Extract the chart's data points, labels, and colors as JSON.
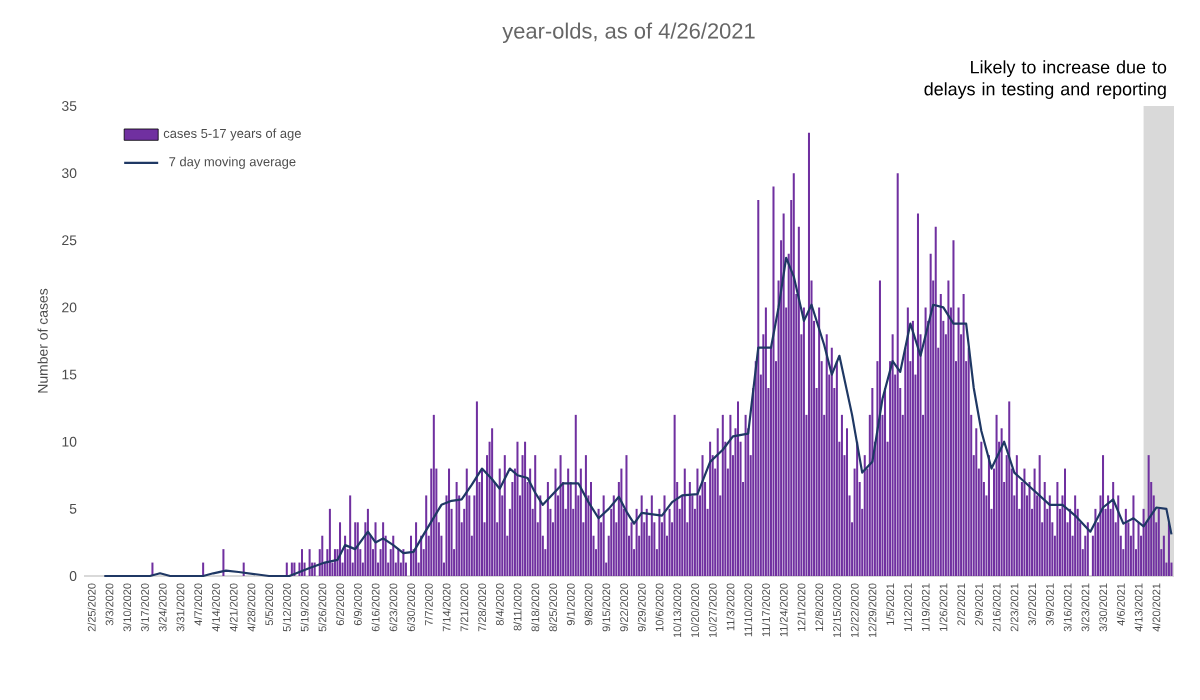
{
  "chart_data": {
    "type": "bar",
    "title": "year-olds, as of 4/26/2021",
    "ylabel": "Number of cases",
    "xlim": [
      "2020-02-22",
      "2021-04-27"
    ],
    "ylim": [
      0,
      35
    ],
    "yticks": [
      0,
      5,
      10,
      15,
      20,
      25,
      30,
      35
    ],
    "xticks": [
      {
        "value": "2020-02-25",
        "label": "2/25/2020"
      },
      {
        "value": "2020-03-03",
        "label": "3/3/2020"
      },
      {
        "value": "2020-03-10",
        "label": "3/10/2020"
      },
      {
        "value": "2020-03-17",
        "label": "3/17/2020"
      },
      {
        "value": "2020-03-24",
        "label": "3/24/2020"
      },
      {
        "value": "2020-03-31",
        "label": "3/31/2020"
      },
      {
        "value": "2020-04-07",
        "label": "4/7/2020"
      },
      {
        "value": "2020-04-14",
        "label": "4/14/2020"
      },
      {
        "value": "2020-04-21",
        "label": "4/21/2020"
      },
      {
        "value": "2020-04-28",
        "label": "4/28/2020"
      },
      {
        "value": "2020-05-05",
        "label": "5/5/2020"
      },
      {
        "value": "2020-05-12",
        "label": "5/12/2020"
      },
      {
        "value": "2020-05-19",
        "label": "5/19/2020"
      },
      {
        "value": "2020-05-26",
        "label": "5/26/2020"
      },
      {
        "value": "2020-06-02",
        "label": "6/2/2020"
      },
      {
        "value": "2020-06-09",
        "label": "6/9/2020"
      },
      {
        "value": "2020-06-16",
        "label": "6/16/2020"
      },
      {
        "value": "2020-06-23",
        "label": "6/23/2020"
      },
      {
        "value": "2020-06-30",
        "label": "6/30/2020"
      },
      {
        "value": "2020-07-07",
        "label": "7/7/2020"
      },
      {
        "value": "2020-07-14",
        "label": "7/14/2020"
      },
      {
        "value": "2020-07-21",
        "label": "7/21/2020"
      },
      {
        "value": "2020-07-28",
        "label": "7/28/2020"
      },
      {
        "value": "2020-08-04",
        "label": "8/4/2020"
      },
      {
        "value": "2020-08-11",
        "label": "8/11/2020"
      },
      {
        "value": "2020-08-18",
        "label": "8/18/2020"
      },
      {
        "value": "2020-08-25",
        "label": "8/25/2020"
      },
      {
        "value": "2020-09-01",
        "label": "9/1/2020"
      },
      {
        "value": "2020-09-08",
        "label": "9/8/2020"
      },
      {
        "value": "2020-09-15",
        "label": "9/15/2020"
      },
      {
        "value": "2020-09-22",
        "label": "9/22/2020"
      },
      {
        "value": "2020-09-29",
        "label": "9/29/2020"
      },
      {
        "value": "2020-10-06",
        "label": "10/6/2020"
      },
      {
        "value": "2020-10-13",
        "label": "10/13/2020"
      },
      {
        "value": "2020-10-20",
        "label": "10/20/2020"
      },
      {
        "value": "2020-10-27",
        "label": "10/27/2020"
      },
      {
        "value": "2020-11-03",
        "label": "11/3/2020"
      },
      {
        "value": "2020-11-10",
        "label": "11/10/2020"
      },
      {
        "value": "2020-11-17",
        "label": "11/17/2020"
      },
      {
        "value": "2020-11-24",
        "label": "11/24/2020"
      },
      {
        "value": "2020-12-01",
        "label": "12/1/2020"
      },
      {
        "value": "2020-12-08",
        "label": "12/8/2020"
      },
      {
        "value": "2020-12-15",
        "label": "12/15/2020"
      },
      {
        "value": "2020-12-22",
        "label": "12/22/2020"
      },
      {
        "value": "2020-12-29",
        "label": "12/29/2020"
      },
      {
        "value": "2021-01-05",
        "label": "1/5/2021"
      },
      {
        "value": "2021-01-12",
        "label": "1/12/2021"
      },
      {
        "value": "2021-01-19",
        "label": "1/19/2021"
      },
      {
        "value": "2021-01-26",
        "label": "1/26/2021"
      },
      {
        "value": "2021-02-02",
        "label": "2/2/2021"
      },
      {
        "value": "2021-02-09",
        "label": "2/9/2021"
      },
      {
        "value": "2021-02-16",
        "label": "2/16/2021"
      },
      {
        "value": "2021-02-23",
        "label": "2/23/2021"
      },
      {
        "value": "2021-03-02",
        "label": "3/2/2021"
      },
      {
        "value": "2021-03-09",
        "label": "3/9/2021"
      },
      {
        "value": "2021-03-16",
        "label": "3/16/2021"
      },
      {
        "value": "2021-03-23",
        "label": "3/23/2021"
      },
      {
        "value": "2021-03-30",
        "label": "3/30/2021"
      },
      {
        "value": "2021-04-06",
        "label": "4/6/2021"
      },
      {
        "value": "2021-04-13",
        "label": "4/13/2021"
      },
      {
        "value": "2021-04-20",
        "label": "4/20/2021"
      }
    ],
    "legend": "top left",
    "bands": [
      {
        "axis": "x",
        "from": "2021-04-15",
        "to": "2021-04-27",
        "label": "Likely to increase due to delays in testing and reporting",
        "color": "#d9d9d9"
      }
    ],
    "series": [
      {
        "name": "cases 5-17 years of age",
        "color": "#7030a0",
        "x": [
          "2020-03-01",
          "2020-03-02",
          "2020-03-03",
          "2020-03-04",
          "2020-03-05",
          "2020-03-06",
          "2020-03-07",
          "2020-03-08",
          "2020-03-09",
          "2020-03-10",
          "2020-03-11",
          "2020-03-12",
          "2020-03-13",
          "2020-03-14",
          "2020-03-15",
          "2020-03-16",
          "2020-03-17",
          "2020-03-18",
          "2020-03-19",
          "2020-03-20",
          "2020-03-21",
          "2020-03-22",
          "2020-03-23",
          "2020-03-24",
          "2020-03-25",
          "2020-03-26",
          "2020-03-27",
          "2020-03-28",
          "2020-03-29",
          "2020-03-30",
          "2020-03-31",
          "2020-04-01",
          "2020-04-02",
          "2020-04-03",
          "2020-04-04",
          "2020-04-05",
          "2020-04-06",
          "2020-04-07",
          "2020-04-08",
          "2020-04-09",
          "2020-04-10",
          "2020-04-11",
          "2020-04-12",
          "2020-04-13",
          "2020-04-14",
          "2020-04-15",
          "2020-04-16",
          "2020-04-17",
          "2020-04-18",
          "2020-04-19",
          "2020-04-20",
          "2020-04-21",
          "2020-04-22",
          "2020-04-23",
          "2020-04-24",
          "2020-04-25",
          "2020-04-26",
          "2020-04-27",
          "2020-04-28",
          "2020-04-29",
          "2020-04-30",
          "2020-05-01",
          "2020-05-02",
          "2020-05-03",
          "2020-05-04",
          "2020-05-05",
          "2020-05-06",
          "2020-05-07",
          "2020-05-08",
          "2020-05-09",
          "2020-05-10",
          "2020-05-11",
          "2020-05-12",
          "2020-05-13",
          "2020-05-14",
          "2020-05-15",
          "2020-05-16",
          "2020-05-17",
          "2020-05-18",
          "2020-05-19",
          "2020-05-20",
          "2020-05-21",
          "2020-05-22",
          "2020-05-23",
          "2020-05-24",
          "2020-05-25",
          "2020-05-26",
          "2020-05-27",
          "2020-05-28",
          "2020-05-29",
          "2020-05-30",
          "2020-05-31",
          "2020-06-01",
          "2020-06-02",
          "2020-06-03",
          "2020-06-04",
          "2020-06-05",
          "2020-06-06",
          "2020-06-07",
          "2020-06-08",
          "2020-06-09",
          "2020-06-10",
          "2020-06-11",
          "2020-06-12",
          "2020-06-13",
          "2020-06-14",
          "2020-06-15",
          "2020-06-16",
          "2020-06-17",
          "2020-06-18",
          "2020-06-19",
          "2020-06-20",
          "2020-06-21",
          "2020-06-22",
          "2020-06-23",
          "2020-06-24",
          "2020-06-25",
          "2020-06-26",
          "2020-06-27",
          "2020-06-28",
          "2020-06-29",
          "2020-06-30",
          "2020-07-01",
          "2020-07-02",
          "2020-07-03",
          "2020-07-04",
          "2020-07-05",
          "2020-07-06",
          "2020-07-07",
          "2020-07-08",
          "2020-07-09",
          "2020-07-10",
          "2020-07-11",
          "2020-07-12",
          "2020-07-13",
          "2020-07-14",
          "2020-07-15",
          "2020-07-16",
          "2020-07-17",
          "2020-07-18",
          "2020-07-19",
          "2020-07-20",
          "2020-07-21",
          "2020-07-22",
          "2020-07-23",
          "2020-07-24",
          "2020-07-25",
          "2020-07-26",
          "2020-07-27",
          "2020-07-28",
          "2020-07-29",
          "2020-07-30",
          "2020-07-31",
          "2020-08-01",
          "2020-08-02",
          "2020-08-03",
          "2020-08-04",
          "2020-08-05",
          "2020-08-06",
          "2020-08-07",
          "2020-08-08",
          "2020-08-09",
          "2020-08-10",
          "2020-08-11",
          "2020-08-12",
          "2020-08-13",
          "2020-08-14",
          "2020-08-15",
          "2020-08-16",
          "2020-08-17",
          "2020-08-18",
          "2020-08-19",
          "2020-08-20",
          "2020-08-21",
          "2020-08-22",
          "2020-08-23",
          "2020-08-24",
          "2020-08-25",
          "2020-08-26",
          "2020-08-27",
          "2020-08-28",
          "2020-08-29",
          "2020-08-30",
          "2020-08-31",
          "2020-09-01",
          "2020-09-02",
          "2020-09-03",
          "2020-09-04",
          "2020-09-05",
          "2020-09-06",
          "2020-09-07",
          "2020-09-08",
          "2020-09-09",
          "2020-09-10",
          "2020-09-11",
          "2020-09-12",
          "2020-09-13",
          "2020-09-14",
          "2020-09-15",
          "2020-09-16",
          "2020-09-17",
          "2020-09-18",
          "2020-09-19",
          "2020-09-20",
          "2020-09-21",
          "2020-09-22",
          "2020-09-23",
          "2020-09-24",
          "2020-09-25",
          "2020-09-26",
          "2020-09-27",
          "2020-09-28",
          "2020-09-29",
          "2020-09-30",
          "2020-10-01",
          "2020-10-02",
          "2020-10-03",
          "2020-10-04",
          "2020-10-05",
          "2020-10-06",
          "2020-10-07",
          "2020-10-08",
          "2020-10-09",
          "2020-10-10",
          "2020-10-11",
          "2020-10-12",
          "2020-10-13",
          "2020-10-14",
          "2020-10-15",
          "2020-10-16",
          "2020-10-17",
          "2020-10-18",
          "2020-10-19",
          "2020-10-20",
          "2020-10-21",
          "2020-10-22",
          "2020-10-23",
          "2020-10-24",
          "2020-10-25",
          "2020-10-26",
          "2020-10-27",
          "2020-10-28",
          "2020-10-29",
          "2020-10-30",
          "2020-10-31",
          "2020-11-01",
          "2020-11-02",
          "2020-11-03",
          "2020-11-04",
          "2020-11-05",
          "2020-11-06",
          "2020-11-07",
          "2020-11-08",
          "2020-11-09",
          "2020-11-10",
          "2020-11-11",
          "2020-11-12",
          "2020-11-13",
          "2020-11-14",
          "2020-11-15",
          "2020-11-16",
          "2020-11-17",
          "2020-11-18",
          "2020-11-19",
          "2020-11-20",
          "2020-11-21",
          "2020-11-22",
          "2020-11-23",
          "2020-11-24",
          "2020-11-25",
          "2020-11-26",
          "2020-11-27",
          "2020-11-28",
          "2020-11-29",
          "2020-11-30",
          "2020-12-01",
          "2020-12-02",
          "2020-12-03",
          "2020-12-04",
          "2020-12-05",
          "2020-12-06",
          "2020-12-07",
          "2020-12-08",
          "2020-12-09",
          "2020-12-10",
          "2020-12-11",
          "2020-12-12",
          "2020-12-13",
          "2020-12-14",
          "2020-12-15",
          "2020-12-16",
          "2020-12-17",
          "2020-12-18",
          "2020-12-19",
          "2020-12-20",
          "2020-12-21",
          "2020-12-22",
          "2020-12-23",
          "2020-12-24",
          "2020-12-25",
          "2020-12-26",
          "2020-12-27",
          "2020-12-28",
          "2020-12-29",
          "2020-12-30",
          "2020-12-31",
          "2021-01-01",
          "2021-01-02",
          "2021-01-03",
          "2021-01-04",
          "2021-01-05",
          "2021-01-06",
          "2021-01-07",
          "2021-01-08",
          "2021-01-09",
          "2021-01-10",
          "2021-01-11",
          "2021-01-12",
          "2021-01-13",
          "2021-01-14",
          "2021-01-15",
          "2021-01-16",
          "2021-01-17",
          "2021-01-18",
          "2021-01-19",
          "2021-01-20",
          "2021-01-21",
          "2021-01-22",
          "2021-01-23",
          "2021-01-24",
          "2021-01-25",
          "2021-01-26",
          "2021-01-27",
          "2021-01-28",
          "2021-01-29",
          "2021-01-30",
          "2021-01-31",
          "2021-02-01",
          "2021-02-02",
          "2021-02-03",
          "2021-02-04",
          "2021-02-05",
          "2021-02-06",
          "2021-02-07",
          "2021-02-08",
          "2021-02-09",
          "2021-02-10",
          "2021-02-11",
          "2021-02-12",
          "2021-02-13",
          "2021-02-14",
          "2021-02-15",
          "2021-02-16",
          "2021-02-17",
          "2021-02-18",
          "2021-02-19",
          "2021-02-20",
          "2021-02-21",
          "2021-02-22",
          "2021-02-23",
          "2021-02-24",
          "2021-02-25",
          "2021-02-26",
          "2021-02-27",
          "2021-02-28",
          "2021-03-01",
          "2021-03-02",
          "2021-03-03",
          "2021-03-04",
          "2021-03-05",
          "2021-03-06",
          "2021-03-07",
          "2021-03-08",
          "2021-03-09",
          "2021-03-10",
          "2021-03-11",
          "2021-03-12",
          "2021-03-13",
          "2021-03-14",
          "2021-03-15",
          "2021-03-16",
          "2021-03-17",
          "2021-03-18",
          "2021-03-19",
          "2021-03-20",
          "2021-03-21",
          "2021-03-22",
          "2021-03-23",
          "2021-03-24",
          "2021-03-25",
          "2021-03-26",
          "2021-03-27",
          "2021-03-28",
          "2021-03-29",
          "2021-03-30",
          "2021-03-31",
          "2021-04-01",
          "2021-04-02",
          "2021-04-03",
          "2021-04-04",
          "2021-04-05",
          "2021-04-06",
          "2021-04-07",
          "2021-04-08",
          "2021-04-09",
          "2021-04-10",
          "2021-04-11",
          "2021-04-12",
          "2021-04-13",
          "2021-04-14",
          "2021-04-15",
          "2021-04-16",
          "2021-04-17",
          "2021-04-18",
          "2021-04-19",
          "2021-04-20",
          "2021-04-21",
          "2021-04-22",
          "2021-04-23",
          "2021-04-24",
          "2021-04-25",
          "2021-04-26"
        ],
        "values": [
          0,
          0,
          0,
          0,
          0,
          0,
          0,
          0,
          0,
          0,
          0,
          0,
          0,
          0,
          0,
          0,
          0,
          0,
          0,
          1,
          0,
          0,
          0,
          0,
          0,
          0,
          0,
          0,
          0,
          0,
          0,
          0,
          0,
          0,
          0,
          0,
          0,
          0,
          0,
          1,
          0,
          0,
          0,
          0,
          0,
          0,
          0,
          2,
          0,
          0,
          0,
          0,
          0,
          0,
          0,
          1,
          0,
          0,
          0,
          0,
          0,
          0,
          0,
          0,
          0,
          0,
          0,
          0,
          0,
          0,
          0,
          0,
          1,
          0,
          1,
          1,
          0,
          1,
          2,
          1,
          0,
          2,
          1,
          1,
          0,
          2,
          3,
          1,
          2,
          5,
          1,
          2,
          2,
          4,
          1,
          3,
          2,
          6,
          1,
          4,
          4,
          2,
          1,
          4,
          5,
          3,
          2,
          4,
          1,
          2,
          4,
          3,
          1,
          2,
          3,
          1,
          2,
          1,
          2,
          1,
          0,
          3,
          2,
          4,
          1,
          3,
          2,
          6,
          3,
          8,
          12,
          8,
          4,
          3,
          1,
          6,
          8,
          5,
          2,
          7,
          6,
          4,
          5,
          8,
          6,
          3,
          6,
          13,
          7,
          8,
          4,
          9,
          10,
          11,
          7,
          4,
          8,
          6,
          9,
          3,
          5,
          7,
          8,
          10,
          6,
          9,
          10,
          7,
          8,
          5,
          9,
          4,
          6,
          3,
          2,
          7,
          5,
          4,
          8,
          6,
          9,
          7,
          5,
          8,
          7,
          5,
          12,
          6,
          8,
          4,
          9,
          6,
          7,
          3,
          2,
          5,
          4,
          6,
          1,
          3,
          5,
          6,
          4,
          7,
          8,
          5,
          9,
          3,
          4,
          2,
          5,
          3,
          6,
          4,
          5,
          3,
          6,
          4,
          2,
          5,
          4,
          6,
          3,
          5,
          4,
          12,
          7,
          5,
          6,
          8,
          4,
          7,
          6,
          5,
          8,
          6,
          9,
          7,
          5,
          10,
          9,
          8,
          11,
          6,
          12,
          10,
          8,
          12,
          9,
          11,
          13,
          10,
          7,
          12,
          11,
          9,
          14,
          16,
          28,
          15,
          18,
          20,
          14,
          17,
          29,
          16,
          22,
          25,
          27,
          20,
          24,
          28,
          30,
          21,
          26,
          18,
          20,
          12,
          33,
          22,
          19,
          14,
          20,
          16,
          12,
          18,
          15,
          17,
          14,
          16,
          10,
          12,
          9,
          11,
          6,
          4,
          8,
          10,
          7,
          5,
          9,
          8,
          12,
          14,
          10,
          16,
          22,
          12,
          14,
          10,
          16,
          18,
          15,
          30,
          14,
          12,
          17,
          20,
          16,
          19,
          15,
          27,
          18,
          12,
          20,
          19,
          24,
          22,
          26,
          17,
          21,
          19,
          18,
          22,
          20,
          25,
          16,
          20,
          18,
          21,
          16,
          17,
          12,
          9,
          11,
          8,
          10,
          7,
          6,
          9,
          5,
          8,
          12,
          10,
          11,
          7,
          9,
          13,
          8,
          6,
          9,
          5,
          7,
          8,
          6,
          7,
          5,
          8,
          6,
          9,
          4,
          7,
          5,
          6,
          4,
          3,
          7,
          5,
          6,
          8,
          4,
          5,
          3,
          6,
          5,
          4,
          2,
          3,
          4,
          0,
          3,
          5,
          4,
          6,
          9,
          5,
          6,
          5,
          7,
          4,
          6,
          3,
          2,
          5,
          4,
          3,
          6,
          2,
          4,
          3,
          5,
          4,
          9,
          7,
          6,
          4,
          5,
          2,
          3,
          1,
          4,
          1
        ]
      },
      {
        "name": "7 day moving average",
        "type": "line",
        "color": "#1f3864",
        "x": [
          "2020-03-01",
          "2020-03-19",
          "2020-03-23",
          "2020-03-27",
          "2020-04-09",
          "2020-04-13",
          "2020-04-18",
          "2020-04-23",
          "2020-04-27",
          "2020-05-05",
          "2020-05-13",
          "2020-05-21",
          "2020-05-27",
          "2020-06-01",
          "2020-06-04",
          "2020-06-08",
          "2020-06-13",
          "2020-06-16",
          "2020-06-19",
          "2020-06-23",
          "2020-06-27",
          "2020-07-01",
          "2020-07-05",
          "2020-07-12",
          "2020-07-16",
          "2020-07-20",
          "2020-07-24",
          "2020-07-28",
          "2020-08-01",
          "2020-08-04",
          "2020-08-08",
          "2020-08-11",
          "2020-08-15",
          "2020-08-18",
          "2020-08-21",
          "2020-08-25",
          "2020-08-29",
          "2020-09-04",
          "2020-09-08",
          "2020-09-12",
          "2020-09-16",
          "2020-09-20",
          "2020-09-23",
          "2020-09-26",
          "2020-09-29",
          "2020-10-03",
          "2020-10-07",
          "2020-10-11",
          "2020-10-15",
          "2020-10-21",
          "2020-10-26",
          "2020-10-31",
          "2020-11-04",
          "2020-11-10",
          "2020-11-14",
          "2020-11-19",
          "2020-11-22",
          "2020-11-25",
          "2020-11-28",
          "2020-12-02",
          "2020-12-05",
          "2020-12-10",
          "2020-12-13",
          "2020-12-16",
          "2020-12-21",
          "2020-12-25",
          "2020-12-29",
          "2021-01-02",
          "2021-01-06",
          "2021-01-09",
          "2021-01-13",
          "2021-01-17",
          "2021-01-22",
          "2021-01-26",
          "2021-01-30",
          "2021-02-04",
          "2021-02-07",
          "2021-02-10",
          "2021-02-14",
          "2021-02-19",
          "2021-02-23",
          "2021-03-02",
          "2021-03-09",
          "2021-03-14",
          "2021-03-19",
          "2021-03-25",
          "2021-03-30",
          "2021-04-03",
          "2021-04-07",
          "2021-04-11",
          "2021-04-15",
          "2021-04-20",
          "2021-04-24",
          "2021-04-26"
        ],
        "values": [
          0,
          0,
          0.2,
          0,
          0,
          0.2,
          0.4,
          0.3,
          0.2,
          0,
          0,
          0.6,
          1,
          1.2,
          2.3,
          2,
          3.3,
          2.5,
          2.8,
          2.3,
          1.7,
          1.8,
          3.1,
          5.3,
          5.6,
          5.7,
          6.8,
          8,
          7.2,
          6.5,
          8,
          7.5,
          7.3,
          6.2,
          5.3,
          6.1,
          6.9,
          6.9,
          5.5,
          4.3,
          5,
          5.9,
          4.8,
          3.9,
          4.7,
          4.6,
          4.5,
          5.5,
          6,
          6.1,
          8.5,
          9.4,
          10.4,
          10.6,
          17,
          17,
          20,
          23.7,
          22.3,
          19,
          20.2,
          17.2,
          15,
          16.4,
          12,
          7.7,
          8.5,
          13.2,
          16,
          15.2,
          18.8,
          16.4,
          20.2,
          20,
          18.8,
          18.8,
          14,
          10.8,
          8,
          10,
          7.7,
          6.5,
          5.3,
          5.3,
          4.5,
          3.3,
          5.1,
          5.7,
          3.9,
          4.3,
          3.7,
          5.1,
          5,
          3.1
        ]
      }
    ]
  }
}
